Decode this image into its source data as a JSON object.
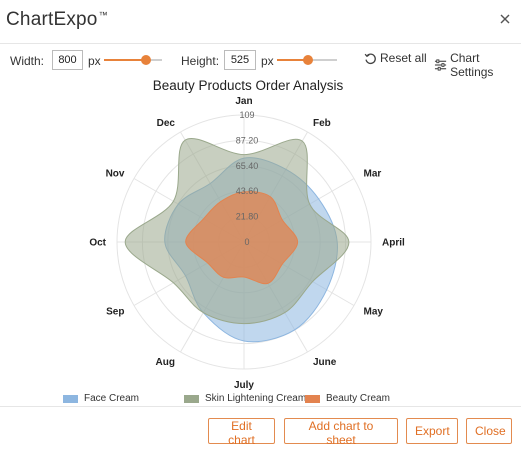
{
  "window": {
    "title": "ChartExpo",
    "title_mark": "™",
    "close_icon": "close-icon"
  },
  "toolbar": {
    "width_label": "Width:",
    "width_value": "800",
    "width_unit": "px",
    "width_slider_value": 0.73,
    "height_label": "Height:",
    "height_value": "525",
    "height_unit": "px",
    "height_slider_value": 0.52,
    "reset_label": "Reset all",
    "reset_icon": "reset-icon",
    "settings_label": "Chart Settings",
    "settings_icon": "sliders-icon",
    "accent_color": "#e8823a"
  },
  "chart_data": {
    "type": "radar",
    "title": "Beauty Products Order Analysis",
    "categories": [
      "Jan",
      "Feb",
      "Mar",
      "April",
      "May",
      "June",
      "July",
      "Aug",
      "Sep",
      "Oct",
      "Nov",
      "Dec"
    ],
    "scale_labels": [
      "0",
      "21.80",
      "43.60",
      "65.40",
      "87.20",
      "109"
    ],
    "rmax": 109,
    "grid": true,
    "legend_position": "bottom",
    "series": [
      {
        "name": "Face Cream",
        "color": "#8db6e0",
        "values": [
          72,
          72,
          74,
          80,
          82,
          87,
          85,
          70,
          58,
          68,
          65,
          58
        ]
      },
      {
        "name": "Skin Lightening Cream",
        "color": "#9aa88c",
        "values": [
          75,
          100,
          65,
          90,
          68,
          70,
          70,
          70,
          70,
          102,
          70,
          101
        ]
      },
      {
        "name": "Beauty Cream",
        "color": "#e3834f",
        "values": [
          43,
          45,
          38,
          46,
          38,
          41,
          30,
          35,
          36,
          50,
          40,
          40
        ]
      }
    ]
  },
  "actions": {
    "edit_label": "Edit chart",
    "add_label": "Add chart to sheet",
    "export_label": "Export",
    "close_label": "Close",
    "button_color": "#e06f24"
  }
}
